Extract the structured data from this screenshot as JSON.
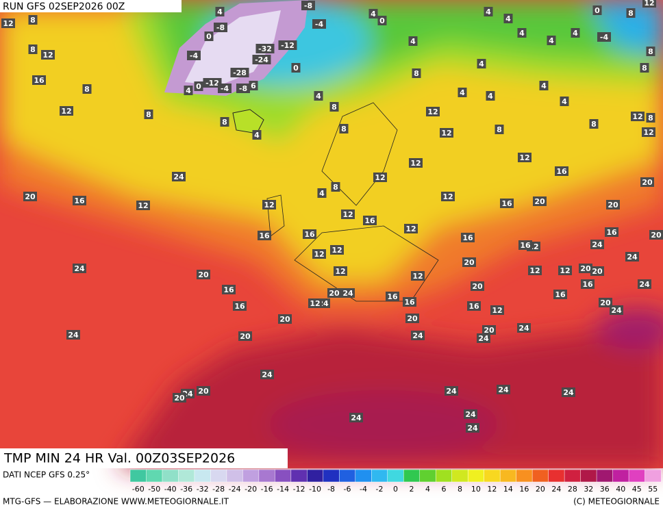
{
  "header": {
    "run": "RUN GFS 02SEP2026 00Z",
    "title": "TMP MIN 24 HR Val. 00Z03SEP2026"
  },
  "footer": {
    "source": "DATI NCEP GFS 0.25°",
    "credit": "MTG-GFS — ELABORAZIONE WWW.METEOGIORNALE.IT",
    "copyright": "(C) METEOGIORNALE"
  },
  "map_labels": [
    12,
    8,
    8,
    12,
    16,
    8,
    12,
    8,
    4,
    -8,
    0,
    -4,
    -32,
    -24,
    -12,
    -8,
    -4,
    0,
    -28,
    -12,
    -4,
    -8,
    6,
    4,
    0,
    4,
    8,
    4,
    8,
    8,
    0,
    4,
    4,
    8,
    12,
    12,
    12,
    12,
    8,
    4,
    12,
    12,
    16,
    12,
    12,
    16,
    16,
    12,
    12,
    12,
    12,
    16,
    20,
    16,
    20,
    16,
    12,
    8,
    4,
    4,
    4,
    4,
    4,
    4,
    4,
    4,
    0,
    -4,
    8,
    12,
    8,
    8,
    12,
    8,
    12,
    8,
    4,
    4,
    20,
    20,
    16,
    20,
    24,
    24,
    20,
    20,
    12,
    16,
    24,
    20,
    24,
    16,
    12,
    12,
    16,
    20,
    16,
    12,
    20,
    24,
    24,
    16,
    16,
    20,
    24,
    24,
    20,
    24,
    12,
    20,
    16,
    16,
    20,
    20,
    24,
    20,
    24,
    20,
    24,
    24,
    20,
    16,
    12,
    24,
    24,
    24,
    24,
    24,
    24,
    24
  ],
  "scale": {
    "ticks": [
      -60,
      -50,
      -40,
      -36,
      -32,
      -28,
      -24,
      -20,
      -16,
      -14,
      -12,
      -10,
      -8,
      -6,
      -4,
      -2,
      0,
      2,
      4,
      6,
      8,
      10,
      12,
      14,
      16,
      20,
      24,
      28,
      32,
      36,
      40,
      45,
      55
    ],
    "colors": [
      "#40c8a0",
      "#60d8b0",
      "#90e0c8",
      "#b0e8d8",
      "#c8e8f0",
      "#d8d8f0",
      "#d0c0e8",
      "#c0a0e0",
      "#a878d0",
      "#8850c0",
      "#6030b0",
      "#3020a0",
      "#2030c0",
      "#2060e0",
      "#2090f0",
      "#30b8f0",
      "#40d8e0",
      "#30c850",
      "#60d030",
      "#a0e020",
      "#d0e820",
      "#f0f020",
      "#f8d820",
      "#f8b820",
      "#f89020",
      "#f06020",
      "#e83030",
      "#d02040",
      "#b01848",
      "#a01870",
      "#c020a0",
      "#e040c0",
      "#f0a0e0"
    ]
  }
}
